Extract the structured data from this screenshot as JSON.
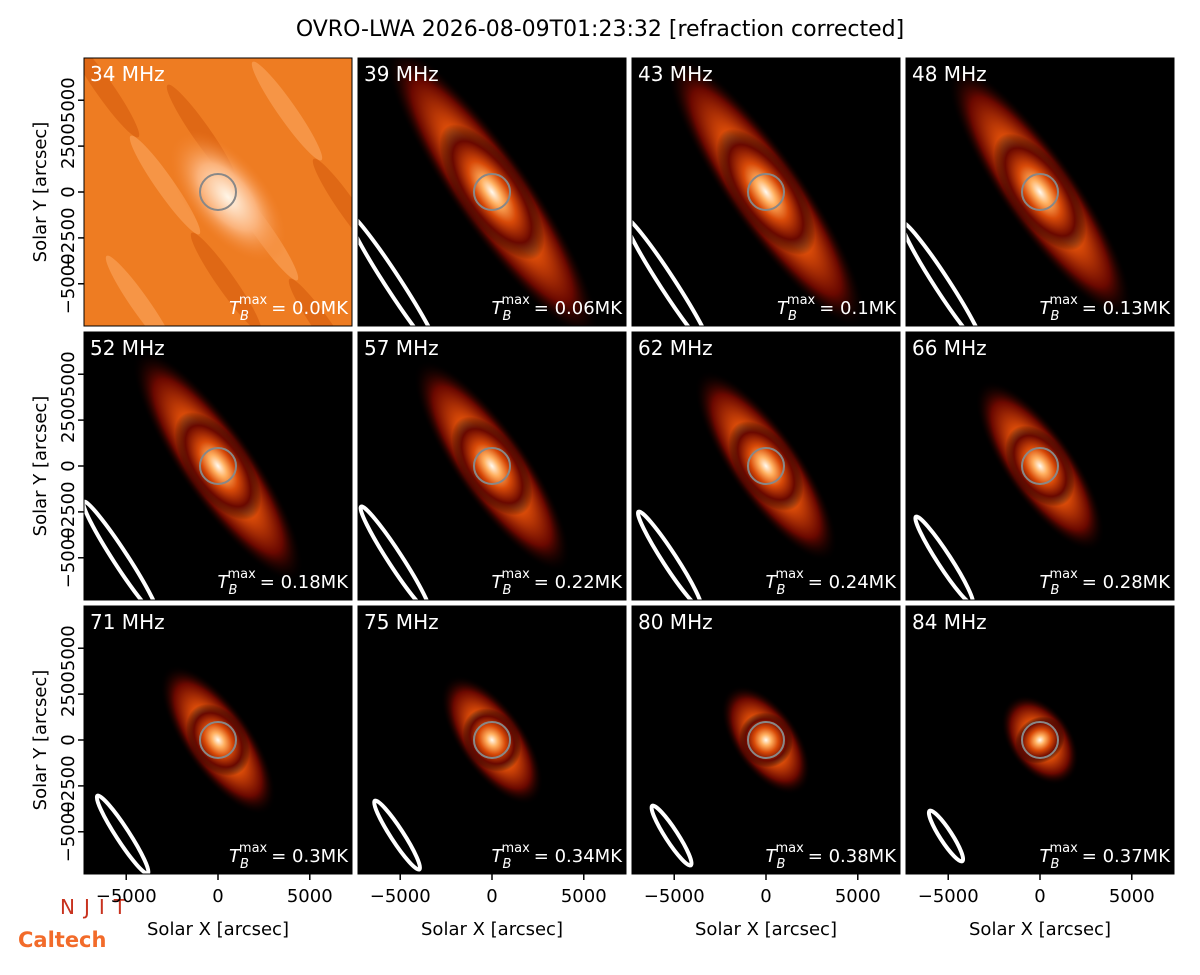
{
  "figure": {
    "title": "OVRO-LWA 2026-08-09T01:23:32 [refraction corrected]",
    "xlabel": "Solar X [arcsec]",
    "ylabel": "Solar Y [arcsec]",
    "xlim": [
      -7300,
      7300
    ],
    "ylim": [
      -7300,
      7300
    ],
    "xticks": [
      {
        "value": -5000,
        "label": "−5000"
      },
      0,
      5000
    ],
    "yticks": [
      {
        "value": -5000,
        "label": "−5000"
      },
      {
        "value": -2500,
        "label": "−2500"
      },
      0,
      2500,
      5000
    ],
    "panels": [
      {
        "label": "34 MHz",
        "tmax": {
          "symbol": "T",
          "sub": "B",
          "sup": "max",
          "value": "= 0.0MK"
        }
      },
      {
        "label": "39 MHz",
        "tmax": {
          "symbol": "T",
          "sub": "B",
          "sup": "max",
          "value": "= 0.06MK"
        }
      },
      {
        "label": "43 MHz",
        "tmax": {
          "symbol": "T",
          "sub": "B",
          "sup": "max",
          "value": "= 0.1MK"
        }
      },
      {
        "label": "48 MHz",
        "tmax": {
          "symbol": "T",
          "sub": "B",
          "sup": "max",
          "value": "= 0.13MK"
        }
      },
      {
        "label": "52 MHz",
        "tmax": {
          "symbol": "T",
          "sub": "B",
          "sup": "max",
          "value": "= 0.18MK"
        }
      },
      {
        "label": "57 MHz",
        "tmax": {
          "symbol": "T",
          "sub": "B",
          "sup": "max",
          "value": "= 0.22MK"
        }
      },
      {
        "label": "62 MHz",
        "tmax": {
          "symbol": "T",
          "sub": "B",
          "sup": "max",
          "value": "= 0.24MK"
        }
      },
      {
        "label": "66 MHz",
        "tmax": {
          "symbol": "T",
          "sub": "B",
          "sup": "max",
          "value": "= 0.28MK"
        }
      },
      {
        "label": "71 MHz",
        "tmax": {
          "symbol": "T",
          "sub": "B",
          "sup": "max",
          "value": "= 0.3MK"
        }
      },
      {
        "label": "75 MHz",
        "tmax": {
          "symbol": "T",
          "sub": "B",
          "sup": "max",
          "value": "= 0.34MK"
        }
      },
      {
        "label": "80 MHz",
        "tmax": {
          "symbol": "T",
          "sub": "B",
          "sup": "max",
          "value": "= 0.38MK"
        }
      },
      {
        "label": "84 MHz",
        "tmax": {
          "symbol": "T",
          "sub": "B",
          "sup": "max",
          "value": "= 0.37MK"
        }
      }
    ],
    "logos": [
      "NJIT",
      "Caltech"
    ]
  }
}
